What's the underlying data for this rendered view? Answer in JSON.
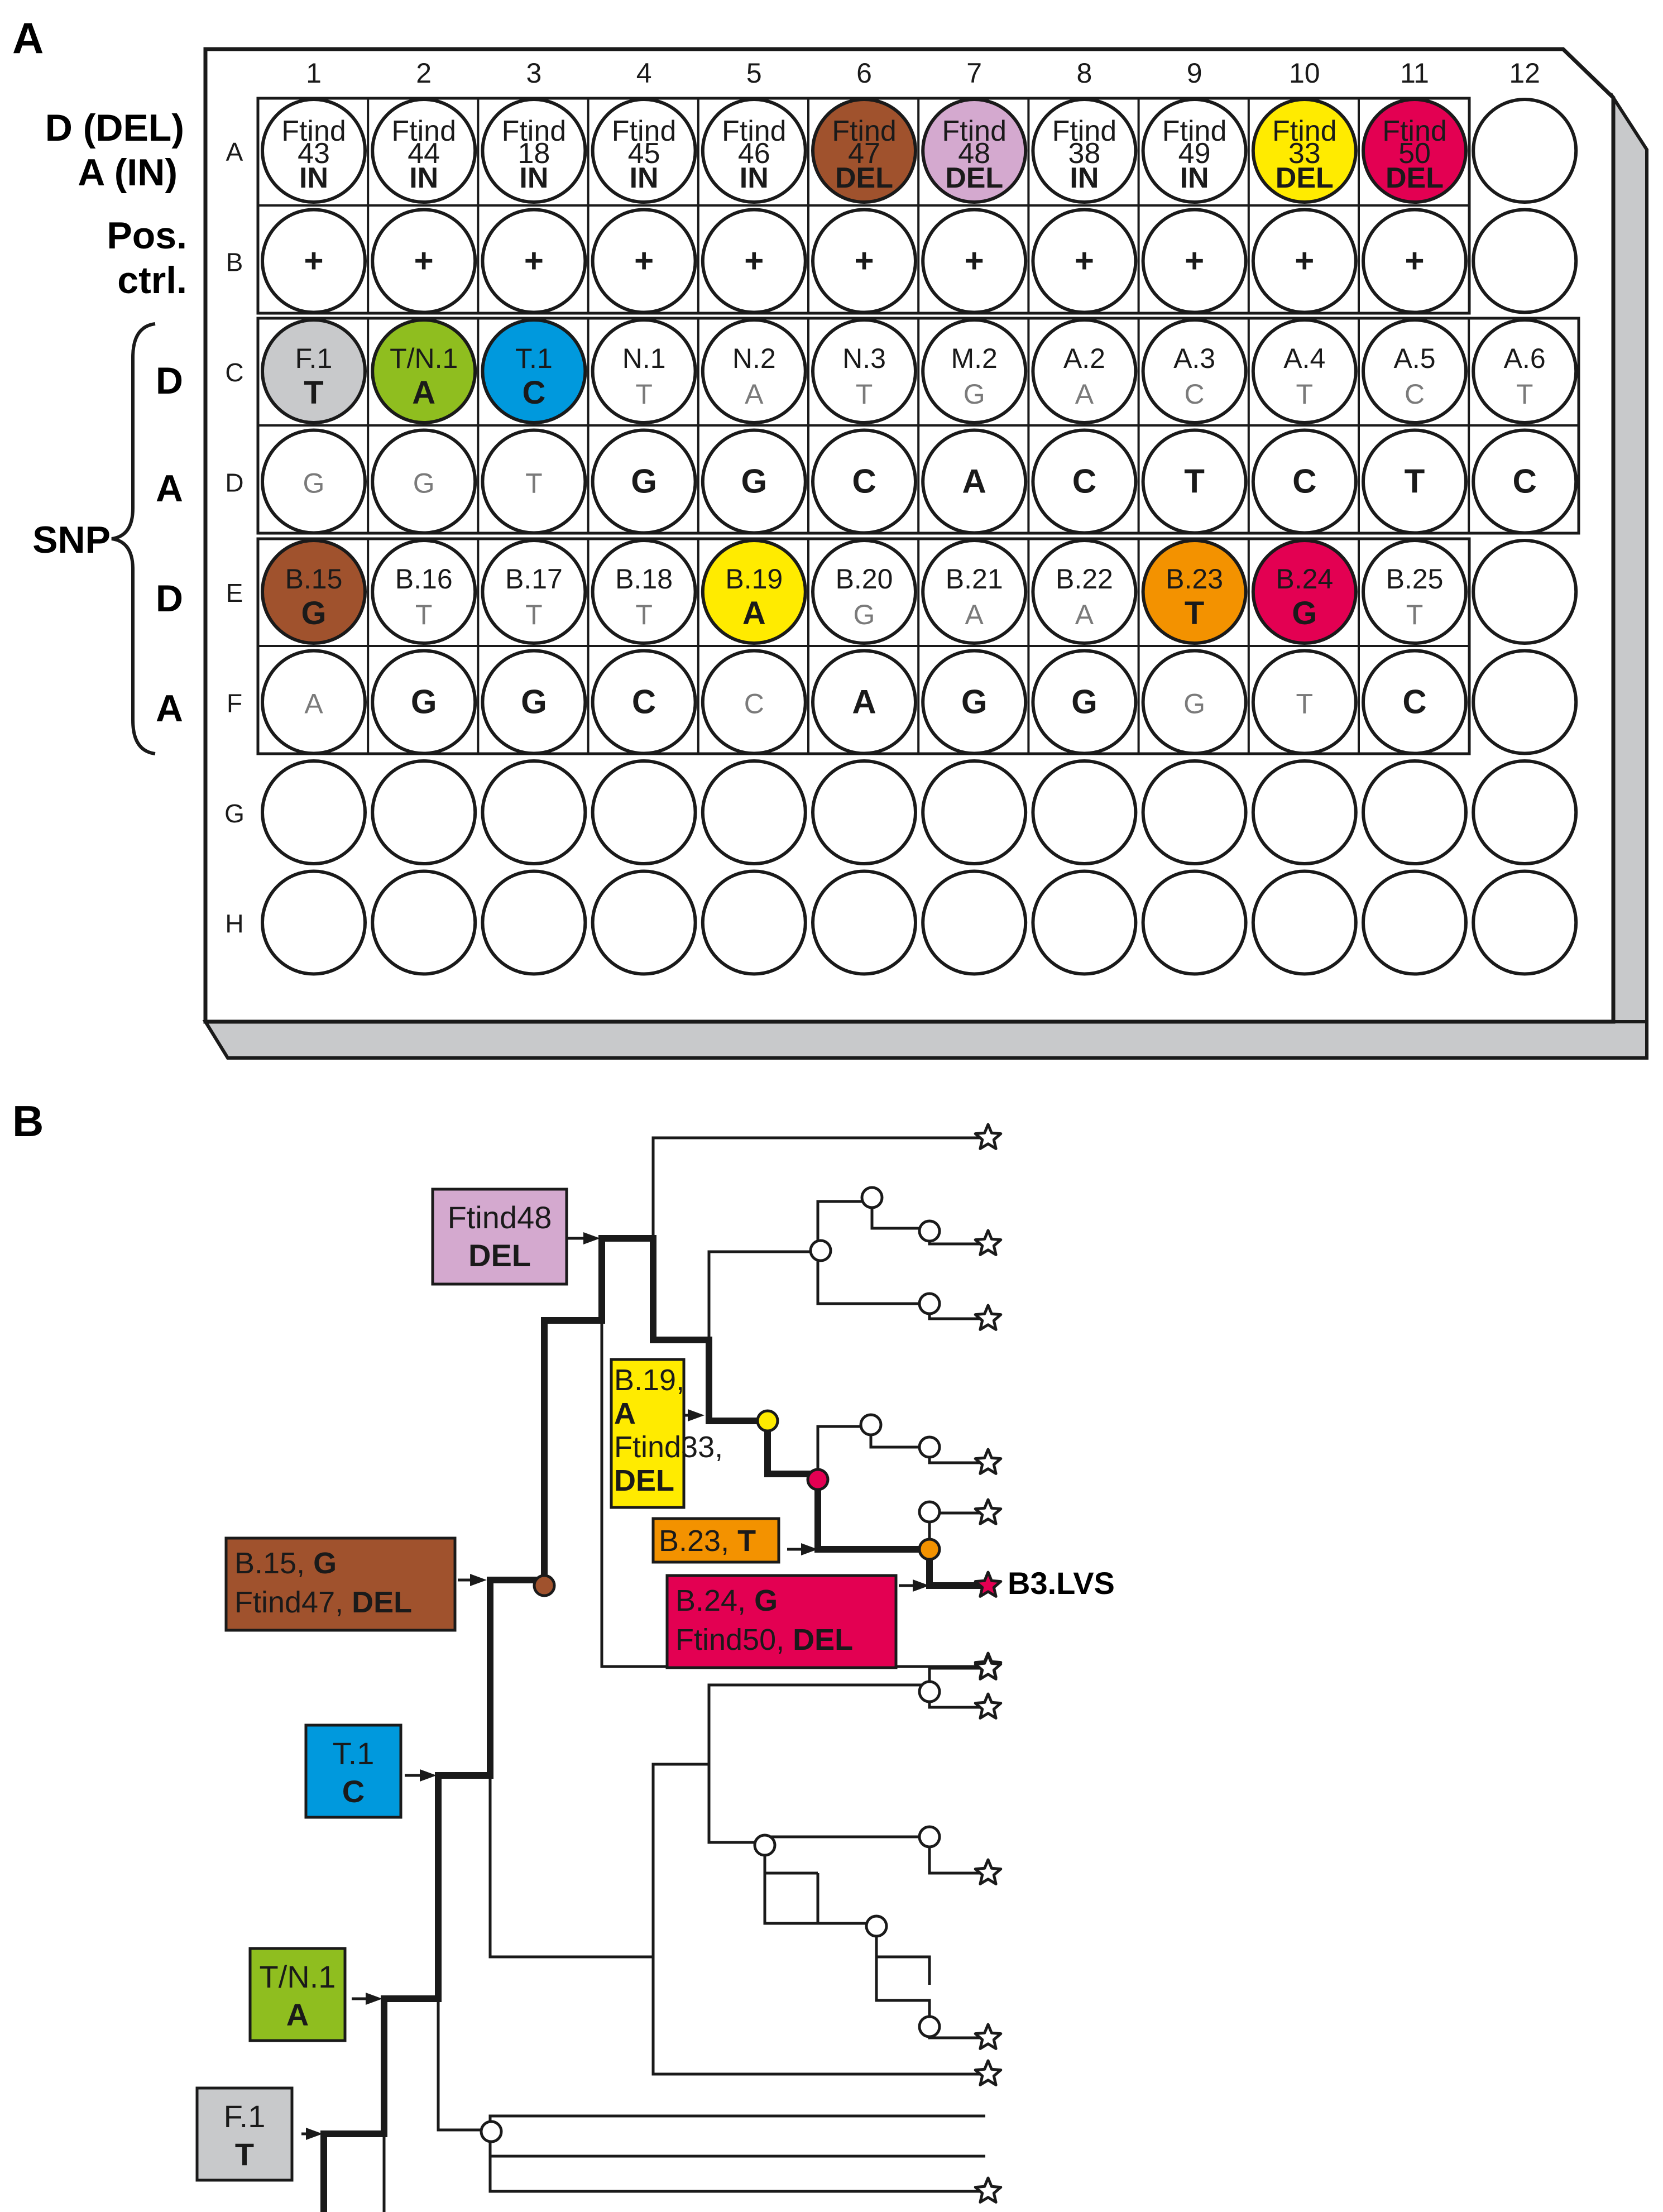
{
  "panel_a": {
    "label": "A",
    "columns": [
      "1",
      "2",
      "3",
      "4",
      "5",
      "6",
      "7",
      "8",
      "9",
      "10",
      "11",
      "12"
    ],
    "rows": [
      "A",
      "B",
      "C",
      "D",
      "E",
      "F",
      "G",
      "H"
    ],
    "side_labels": {
      "del_in_line1": "D (DEL)",
      "del_in_line2": "A (IN)",
      "pos_line1": "Pos.",
      "pos_line2": "ctrl.",
      "snp": "SNP",
      "c": "D",
      "d": "A",
      "e": "D",
      "f": "A"
    },
    "wells": {
      "A": [
        {
          "t": [
            "Ftind",
            "43"
          ],
          "b": "IN",
          "fill": "#ffffff"
        },
        {
          "t": [
            "Ftind",
            "44"
          ],
          "b": "IN",
          "fill": "#ffffff"
        },
        {
          "t": [
            "Ftind",
            "18"
          ],
          "b": "IN",
          "fill": "#ffffff"
        },
        {
          "t": [
            "Ftind",
            "45"
          ],
          "b": "IN",
          "fill": "#ffffff"
        },
        {
          "t": [
            "Ftind",
            "46"
          ],
          "b": "IN",
          "fill": "#ffffff"
        },
        {
          "t": [
            "Ftind",
            "47"
          ],
          "b": "DEL",
          "fill": "#a0522d"
        },
        {
          "t": [
            "Ftind",
            "48"
          ],
          "b": "DEL",
          "fill": "#d4a9cf"
        },
        {
          "t": [
            "Ftind",
            "38"
          ],
          "b": "IN",
          "fill": "#ffffff"
        },
        {
          "t": [
            "Ftind",
            "49"
          ],
          "b": "IN",
          "fill": "#ffffff"
        },
        {
          "t": [
            "Ftind",
            "33"
          ],
          "b": "DEL",
          "fill": "#ffeb00"
        },
        {
          "t": [
            "Ftind",
            "50"
          ],
          "b": "DEL",
          "fill": "#e30052"
        },
        {
          "t": [],
          "b": "",
          "fill": "#ffffff"
        }
      ],
      "B": [
        "+",
        "+",
        "+",
        "+",
        "+",
        "+",
        "+",
        "+",
        "+",
        "+",
        "+",
        ""
      ],
      "C": [
        {
          "t": "F.1",
          "b": "T",
          "fill": "#c8c9cb",
          "bold": true
        },
        {
          "t": "T/N.1",
          "b": "A",
          "fill": "#8fbe1f",
          "bold": true
        },
        {
          "t": "T.1",
          "b": "C",
          "fill": "#0099dd",
          "bold": true
        },
        {
          "t": "N.1",
          "b": "T",
          "fill": "#ffffff",
          "bold": false
        },
        {
          "t": "N.2",
          "b": "A",
          "fill": "#ffffff",
          "bold": false
        },
        {
          "t": "N.3",
          "b": "T",
          "fill": "#ffffff",
          "bold": false
        },
        {
          "t": "M.2",
          "b": "G",
          "fill": "#ffffff",
          "bold": false
        },
        {
          "t": "A.2",
          "b": "A",
          "fill": "#ffffff",
          "bold": false
        },
        {
          "t": "A.3",
          "b": "C",
          "fill": "#ffffff",
          "bold": false
        },
        {
          "t": "A.4",
          "b": "T",
          "fill": "#ffffff",
          "bold": false
        },
        {
          "t": "A.5",
          "b": "C",
          "fill": "#ffffff",
          "bold": false
        },
        {
          "t": "A.6",
          "b": "T",
          "fill": "#ffffff",
          "bold": false
        }
      ],
      "D": [
        {
          "v": "G",
          "bold": false
        },
        {
          "v": "G",
          "bold": false
        },
        {
          "v": "T",
          "bold": false
        },
        {
          "v": "G",
          "bold": true
        },
        {
          "v": "G",
          "bold": true
        },
        {
          "v": "C",
          "bold": true
        },
        {
          "v": "A",
          "bold": true
        },
        {
          "v": "C",
          "bold": true
        },
        {
          "v": "T",
          "bold": true
        },
        {
          "v": "C",
          "bold": true
        },
        {
          "v": "T",
          "bold": true
        },
        {
          "v": "C",
          "bold": true
        }
      ],
      "E": [
        {
          "t": "B.15",
          "b": "G",
          "fill": "#a0522d",
          "bold": true
        },
        {
          "t": "B.16",
          "b": "T",
          "fill": "#ffffff",
          "bold": false
        },
        {
          "t": "B.17",
          "b": "T",
          "fill": "#ffffff",
          "bold": false
        },
        {
          "t": "B.18",
          "b": "T",
          "fill": "#ffffff",
          "bold": false
        },
        {
          "t": "B.19",
          "b": "A",
          "fill": "#ffeb00",
          "bold": true
        },
        {
          "t": "B.20",
          "b": "G",
          "fill": "#ffffff",
          "bold": false
        },
        {
          "t": "B.21",
          "b": "A",
          "fill": "#ffffff",
          "bold": false
        },
        {
          "t": "B.22",
          "b": "A",
          "fill": "#ffffff",
          "bold": false
        },
        {
          "t": "B.23",
          "b": "T",
          "fill": "#f39200",
          "bold": true
        },
        {
          "t": "B.24",
          "b": "G",
          "fill": "#e30052",
          "bold": true
        },
        {
          "t": "B.25",
          "b": "T",
          "fill": "#ffffff",
          "bold": false
        },
        {
          "t": "",
          "b": "",
          "fill": "#ffffff",
          "bold": false
        }
      ],
      "F": [
        {
          "v": "A",
          "bold": false
        },
        {
          "v": "G",
          "bold": true
        },
        {
          "v": "G",
          "bold": true
        },
        {
          "v": "C",
          "bold": true
        },
        {
          "v": "C",
          "bold": false
        },
        {
          "v": "A",
          "bold": true
        },
        {
          "v": "G",
          "bold": true
        },
        {
          "v": "G",
          "bold": true
        },
        {
          "v": "G",
          "bold": false
        },
        {
          "v": "T",
          "bold": false
        },
        {
          "v": "C",
          "bold": true
        },
        {
          "v": "",
          "bold": false
        }
      ]
    }
  },
  "panel_b": {
    "label": "B",
    "boxes": {
      "ftind48": {
        "lines": [
          "Ftind48",
          "DEL"
        ],
        "fill": "#d4a9cf"
      },
      "b19": {
        "lines": [
          "B.19,",
          "A",
          "Ftind33,",
          "DEL"
        ],
        "fill": "#ffeb00"
      },
      "b23": {
        "line1": "B.23, ",
        "line1b": "T",
        "fill": "#f39200"
      },
      "b15": {
        "line1": "B.15, ",
        "line1b": "G",
        "line2": "Ftind47, ",
        "line2b": "DEL",
        "fill": "#a0522d"
      },
      "b24": {
        "line1": "B.24, ",
        "line1b": "G",
        "line2": "Ftind50, ",
        "line2b": "DEL",
        "fill": "#e30052"
      },
      "t1": {
        "lines": [
          "T.1",
          "C"
        ],
        "fill": "#0099dd"
      },
      "tn1": {
        "lines": [
          "T/N.1",
          "A"
        ],
        "fill": "#8fbe1f"
      },
      "f1": {
        "lines": [
          "F.1",
          "T"
        ],
        "fill": "#c8c9cb"
      }
    },
    "leaf_label": "B3.LVS",
    "colors": {
      "brown": "#a0522d",
      "yellow": "#ffeb00",
      "red": "#e30052",
      "orange": "#f39200"
    }
  }
}
